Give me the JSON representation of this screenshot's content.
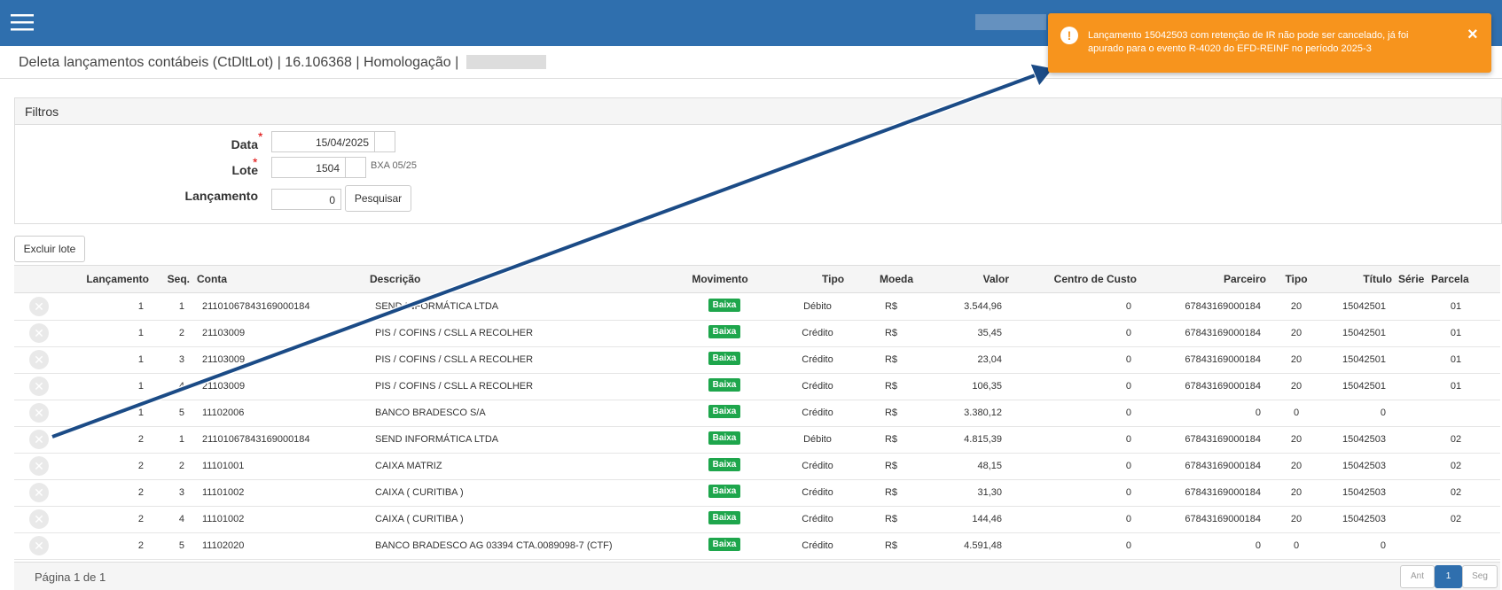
{
  "header": {
    "title": "Deleta lançamentos contábeis (CtDltLot) | 16.106368 | Homologação |"
  },
  "toast": {
    "message": "Lançamento 15042503 com retenção de IR não pode ser cancelado, já foi apurado para o evento R-4020 do EFD-REINF no período 2025-3",
    "close": "×"
  },
  "filters": {
    "title": "Filtros",
    "data": {
      "label": "Data",
      "required": "*",
      "value": "15/04/2025"
    },
    "lote": {
      "label": "Lote",
      "required": "*",
      "value": "1504",
      "hint": "BXA 05/25"
    },
    "lancamento": {
      "label": "Lançamento",
      "value": "0",
      "button": "Pesquisar"
    }
  },
  "delete_batch_button": "Excluir lote",
  "table": {
    "columns": [
      "Lançamento",
      "Seq.",
      "Conta",
      "Descrição",
      "Movimento",
      "Tipo",
      "Moeda",
      "Valor",
      "Centro de Custo",
      "Parceiro",
      "Tipo",
      "Título",
      "Série",
      "Parcela"
    ],
    "rows": [
      [
        "1",
        "1",
        "21101067843169000184",
        "SEND INFORMÁTICA LTDA",
        "Baixa",
        "Débito",
        "R$",
        "3.544,96",
        "0",
        "67843169000184",
        "20",
        "15042501",
        null,
        "01"
      ],
      [
        "1",
        "2",
        "21103009",
        "PIS / COFINS / CSLL A RECOLHER",
        "Baixa",
        "Crédito",
        "R$",
        "35,45",
        "0",
        "67843169000184",
        "20",
        "15042501",
        null,
        "01"
      ],
      [
        "1",
        "3",
        "21103009",
        "PIS / COFINS / CSLL A RECOLHER",
        "Baixa",
        "Crédito",
        "R$",
        "23,04",
        "0",
        "67843169000184",
        "20",
        "15042501",
        null,
        "01"
      ],
      [
        "1",
        "4",
        "21103009",
        "PIS / COFINS / CSLL A RECOLHER",
        "Baixa",
        "Crédito",
        "R$",
        "106,35",
        "0",
        "67843169000184",
        "20",
        "15042501",
        null,
        "01"
      ],
      [
        "1",
        "5",
        "11102006",
        "BANCO BRADESCO S/A",
        "Baixa",
        "Crédito",
        "R$",
        "3.380,12",
        "0",
        "0",
        "0",
        "0",
        null,
        null
      ],
      [
        "2",
        "1",
        "21101067843169000184",
        "SEND INFORMÁTICA LTDA",
        "Baixa",
        "Débito",
        "R$",
        "4.815,39",
        "0",
        "67843169000184",
        "20",
        "15042503",
        null,
        "02"
      ],
      [
        "2",
        "2",
        "11101001",
        "CAIXA MATRIZ",
        "Baixa",
        "Crédito",
        "R$",
        "48,15",
        "0",
        "67843169000184",
        "20",
        "15042503",
        null,
        "02"
      ],
      [
        "2",
        "3",
        "11101002",
        "CAIXA ( CURITIBA )",
        "Baixa",
        "Crédito",
        "R$",
        "31,30",
        "0",
        "67843169000184",
        "20",
        "15042503",
        null,
        "02"
      ],
      [
        "2",
        "4",
        "11101002",
        "CAIXA ( CURITIBA )",
        "Baixa",
        "Crédito",
        "R$",
        "144,46",
        "0",
        "67843169000184",
        "20",
        "15042503",
        null,
        "02"
      ],
      [
        "2",
        "5",
        "11102020",
        "BANCO BRADESCO AG 03394 CTA.0089098-7 (CTF)",
        "Baixa",
        "Crédito",
        "R$",
        "4.591,48",
        "0",
        "0",
        "0",
        "0",
        null,
        null
      ]
    ]
  },
  "pagination": {
    "info": "Página 1 de 1",
    "prev": "Ant",
    "page": "1",
    "next": "Seg"
  }
}
